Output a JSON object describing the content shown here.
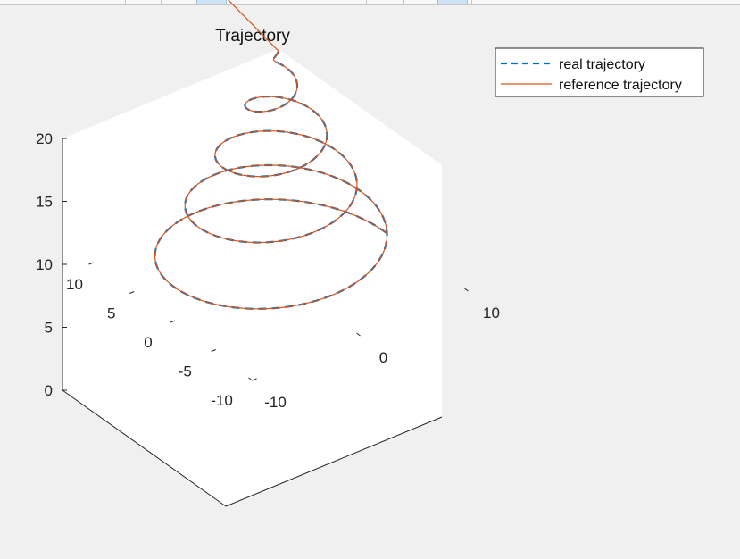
{
  "chart_data": {
    "type": "line",
    "title": "Trajectory",
    "xlabel": "",
    "ylabel": "",
    "zlabel": "",
    "xlim": [
      -10,
      10
    ],
    "ylim": [
      -10,
      10
    ],
    "zlim": [
      0,
      20
    ],
    "x_ticks": [
      "-10",
      "0",
      "10"
    ],
    "y_ticks": [
      "-10",
      "-5",
      "0",
      "5",
      "10"
    ],
    "z_ticks": [
      "0",
      "5",
      "10",
      "15",
      "20"
    ],
    "legend_position": "top-right",
    "grid": false,
    "series": [
      {
        "name": "real trajectory",
        "style": "dashed",
        "color": "#0072bd",
        "parametric": {
          "radius_start": 10,
          "radius_end": 0,
          "turns": 4.5,
          "z_start": 0,
          "z_end": 18
        }
      },
      {
        "name": "reference trajectory",
        "style": "solid",
        "color": "#d95319",
        "parametric": {
          "radius_start": 10,
          "radius_end": 0,
          "turns": 4.5,
          "z_start": 0,
          "z_end": 18
        },
        "tail": {
          "from": [
            0,
            0,
            18
          ],
          "to": [
            0,
            10,
            20
          ]
        }
      }
    ]
  }
}
